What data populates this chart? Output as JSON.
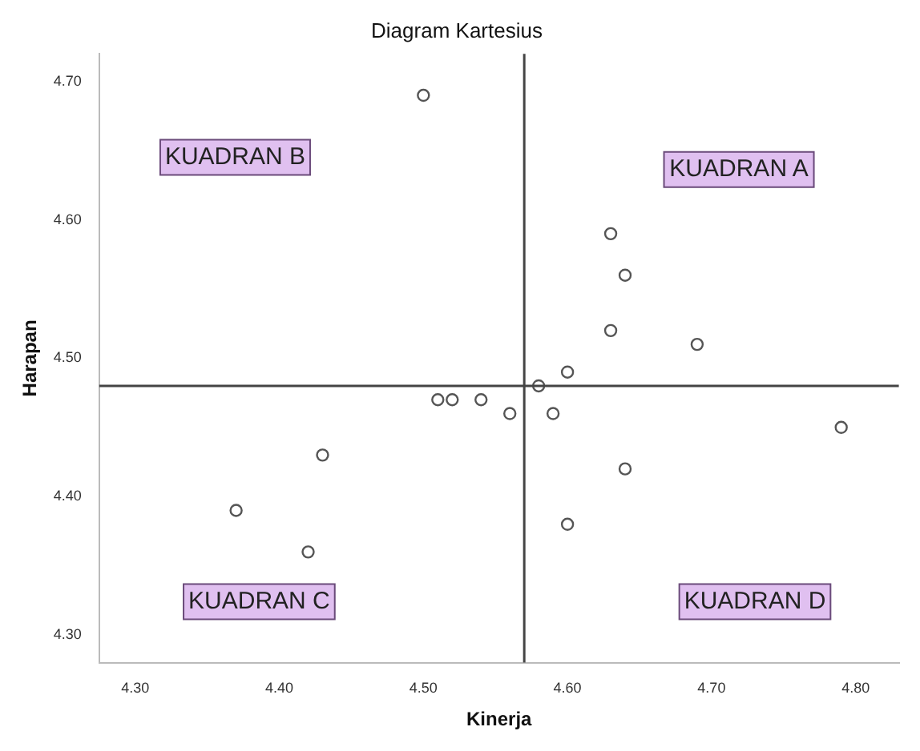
{
  "chart_data": {
    "type": "scatter",
    "title": "Diagram Kartesius",
    "xlabel": "Kinerja",
    "ylabel": "Harapan",
    "x": [
      4.5,
      4.63,
      4.64,
      4.63,
      4.6,
      4.58,
      4.51,
      4.52,
      4.54,
      4.56,
      4.59,
      4.69,
      4.64,
      4.79,
      4.6,
      4.43,
      4.37,
      4.42
    ],
    "values": [
      4.69,
      4.59,
      4.56,
      4.52,
      4.49,
      4.48,
      4.47,
      4.47,
      4.47,
      4.46,
      4.46,
      4.51,
      4.42,
      4.45,
      4.38,
      4.43,
      4.39,
      4.36
    ],
    "color": "#555555",
    "marker": "circle",
    "grid": false,
    "legend": false,
    "xlim": [
      4.275,
      4.83
    ],
    "ylim": [
      4.28,
      4.72
    ],
    "xticks": [
      {
        "value": 4.3,
        "label": "4.30"
      },
      {
        "value": 4.4,
        "label": "4.40"
      },
      {
        "value": 4.5,
        "label": "4.50"
      },
      {
        "value": 4.6,
        "label": "4.60"
      },
      {
        "value": 4.7,
        "label": "4.70"
      },
      {
        "value": 4.8,
        "label": "4.80"
      }
    ],
    "yticks": [
      {
        "value": 4.3,
        "label": "4.30"
      },
      {
        "value": 4.4,
        "label": "4.40"
      },
      {
        "value": 4.5,
        "label": "4.50"
      },
      {
        "value": 4.6,
        "label": "4.60"
      },
      {
        "value": 4.7,
        "label": "4.70"
      }
    ],
    "ref_lines": [
      {
        "axis": "x",
        "value": 4.57,
        "color": "#444444"
      },
      {
        "axis": "y",
        "value": 4.48,
        "color": "#444444"
      }
    ],
    "annotations": [
      "KUADRAN B",
      "KUADRAN A",
      "KUADRAN C",
      "KUADRAN D"
    ]
  }
}
